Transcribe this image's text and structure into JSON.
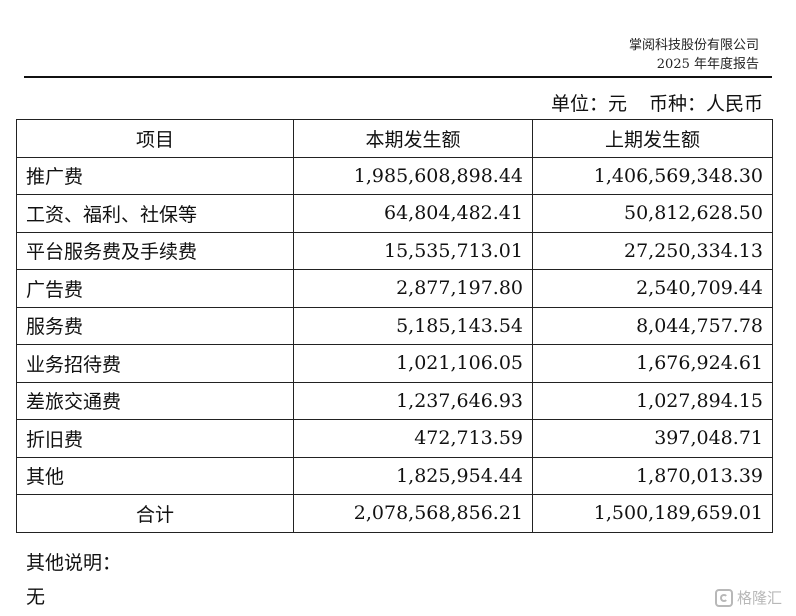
{
  "header": {
    "company": "掌阅科技股份有限公司",
    "report": "2025 年年度报告"
  },
  "unit_line": {
    "unit": "单位：元",
    "currency": "币种：人民币"
  },
  "table": {
    "columns": [
      "项目",
      "本期发生额",
      "上期发生额"
    ],
    "rows": [
      {
        "item": "推广费",
        "current": "1,985,608,898.44",
        "previous": "1,406,569,348.30"
      },
      {
        "item": "工资、福利、社保等",
        "current": "64,804,482.41",
        "previous": "50,812,628.50"
      },
      {
        "item": "平台服务费及手续费",
        "current": "15,535,713.01",
        "previous": "27,250,334.13"
      },
      {
        "item": "广告费",
        "current": "2,877,197.80",
        "previous": "2,540,709.44"
      },
      {
        "item": "服务费",
        "current": "5,185,143.54",
        "previous": "8,044,757.78"
      },
      {
        "item": "业务招待费",
        "current": "1,021,106.05",
        "previous": "1,676,924.61"
      },
      {
        "item": "差旅交通费",
        "current": "1,237,646.93",
        "previous": "1,027,894.15"
      },
      {
        "item": "折旧费",
        "current": "472,713.59",
        "previous": "397,048.71"
      },
      {
        "item": "其他",
        "current": "1,825,954.44",
        "previous": "1,870,013.39"
      }
    ],
    "total": {
      "item": "合计",
      "current": "2,078,568,856.21",
      "previous": "1,500,189,659.01"
    }
  },
  "notes": {
    "label": "其他说明：",
    "text": "无"
  },
  "watermark": {
    "text": "格隆汇",
    "icon": "brand-logo-icon"
  }
}
